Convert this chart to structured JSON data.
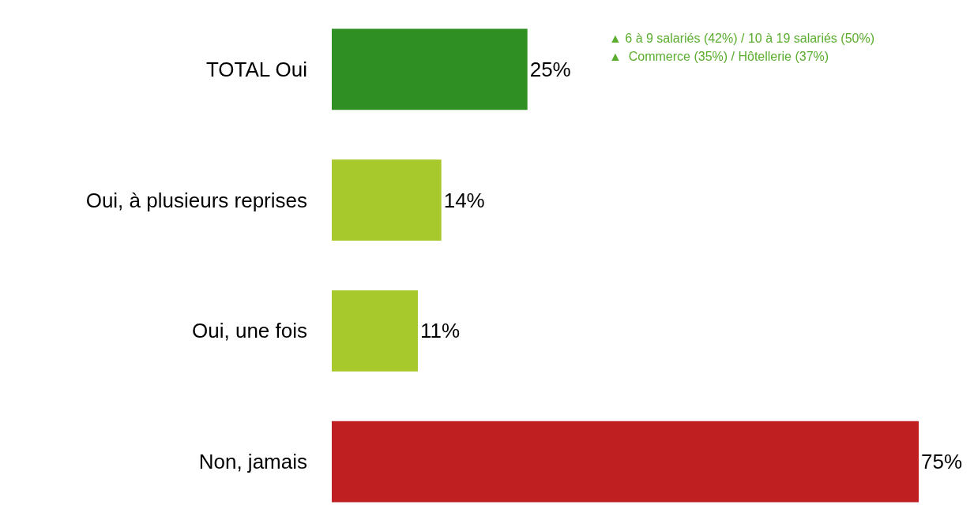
{
  "chart_data": {
    "type": "bar",
    "orientation": "horizontal",
    "categories": [
      "TOTAL Oui",
      "Oui, à plusieurs reprises",
      "Oui, une fois",
      "Non, jamais"
    ],
    "values": [
      25,
      14,
      11,
      75
    ],
    "colors": [
      "#2f8f22",
      "#a7c92b",
      "#a7c92b",
      "#c01f22"
    ],
    "data_labels": true,
    "value_labels": [
      "25%",
      "14%",
      "11%",
      "75%"
    ],
    "annotations": [
      "▲ 6 à 9 salariés (42%) / 10 à 19 salariés (50%)",
      "▲  Commerce (35%) / Hôtellerie (37%)"
    ]
  }
}
